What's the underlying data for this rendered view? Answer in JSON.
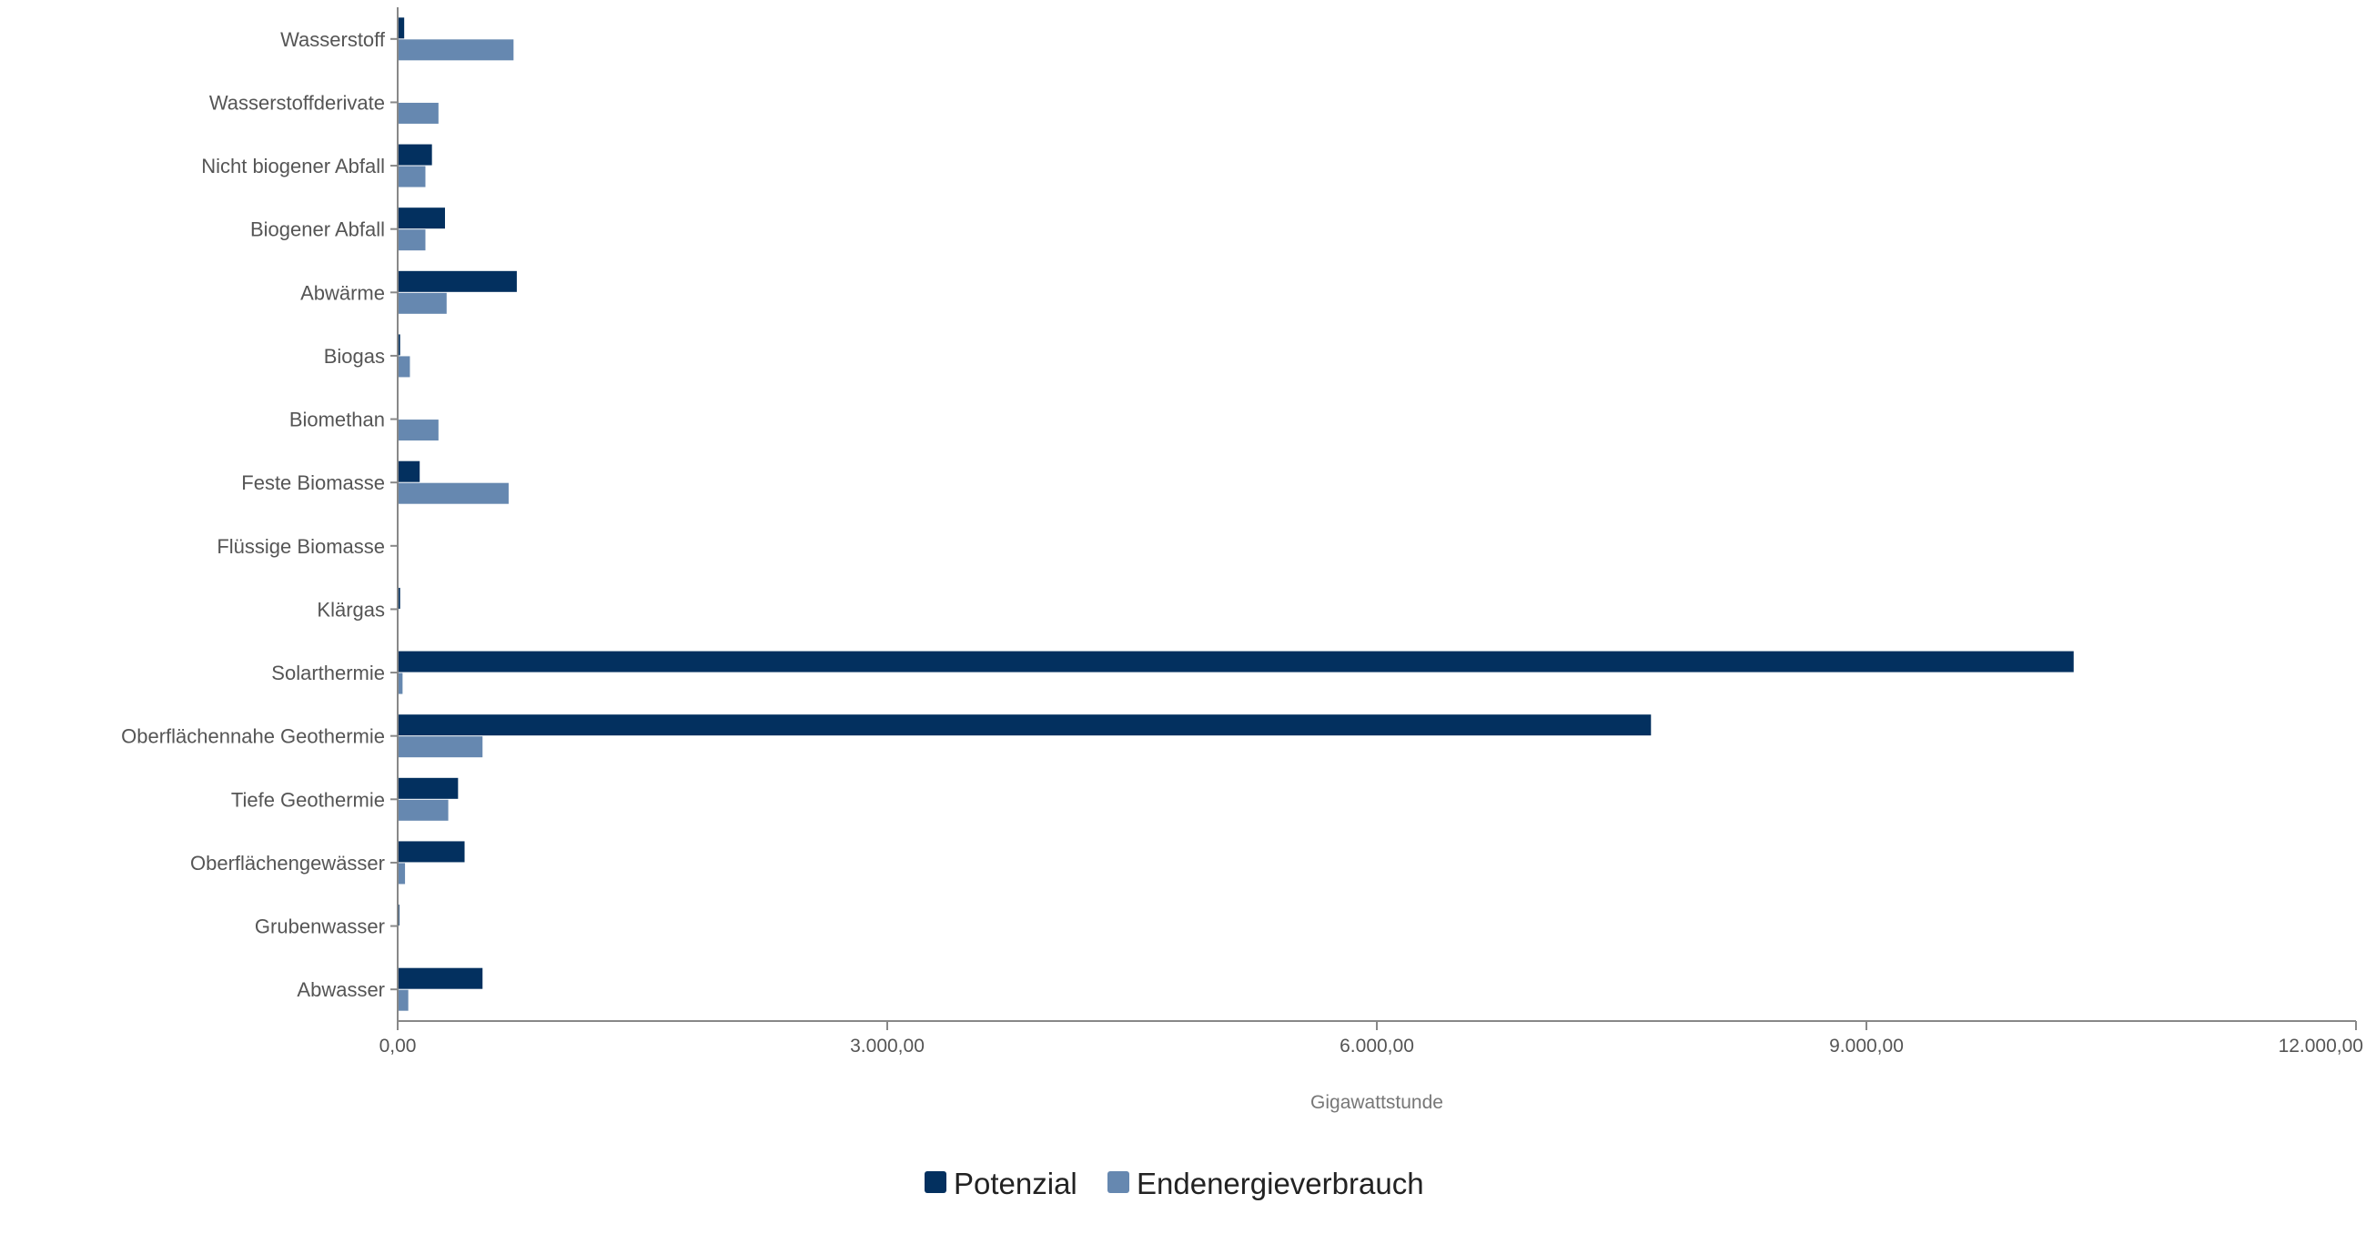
{
  "chart_data": {
    "type": "bar",
    "orientation": "horizontal",
    "categories": [
      "Wasserstoff",
      "Wasserstoffderivate",
      "Nicht biogener Abfall",
      "Biogener Abfall",
      "Abwärme",
      "Biogas",
      "Biomethan",
      "Feste Biomasse",
      "Flüssige Biomasse",
      "Klärgas",
      "Solarthermie",
      "Oberflächennahe Geothermie",
      "Tiefe Geothermie",
      "Oberflächengewässer",
      "Grubenwasser",
      "Abwasser"
    ],
    "series": [
      {
        "name": "Potenzial",
        "color": "#03305f",
        "values": [
          40,
          0,
          210,
          290,
          730,
          15,
          0,
          135,
          0,
          15,
          10270,
          7680,
          370,
          410,
          10,
          520
        ]
      },
      {
        "name": "Endenergieverbrauch",
        "color": "#6688b0",
        "values": [
          710,
          250,
          170,
          170,
          300,
          75,
          250,
          680,
          0,
          0,
          30,
          520,
          310,
          45,
          0,
          65
        ]
      }
    ],
    "xlabel": "Gigawattstunde",
    "xlim": [
      0,
      12000
    ],
    "x_ticks": [
      0,
      3000,
      6000,
      9000,
      12000
    ],
    "x_tick_labels": [
      "0,00",
      "3.000,00",
      "6.000,00",
      "9.000,00",
      "12.000,00"
    ],
    "grid": false,
    "legend": "bottom-center"
  }
}
